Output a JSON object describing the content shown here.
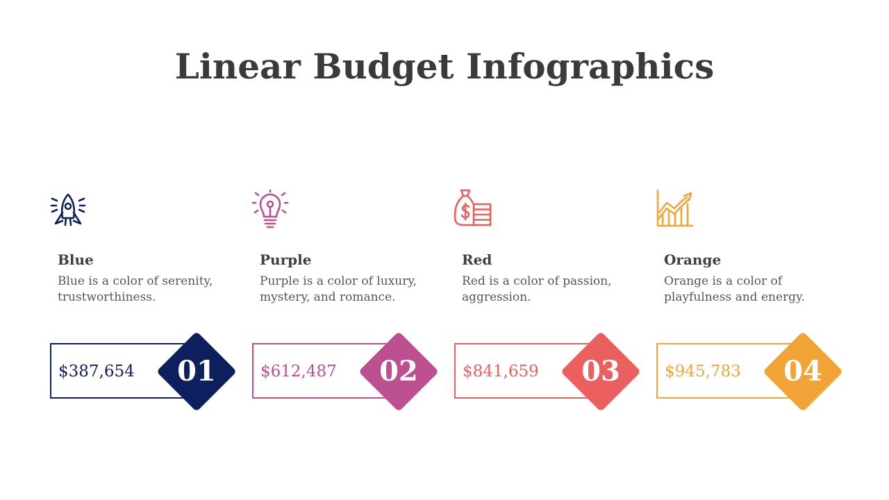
{
  "title": "Linear Budget Infographics",
  "items": [
    {
      "icon": "rocket-icon",
      "name": "Blue",
      "description": "Blue is a color of serenity, trustworthiness.",
      "amount": "$387,654",
      "number": "01",
      "color": "#0d1f5c"
    },
    {
      "icon": "lightbulb-icon",
      "name": "Purple",
      "description": "Purple is a color of luxury, mystery, and romance.",
      "amount": "$612,487",
      "number": "02",
      "color": "#bb4f8f"
    },
    {
      "icon": "money-bag-icon",
      "name": "Red",
      "description": "Red is a color of passion, aggression.",
      "amount": "$841,659",
      "number": "03",
      "color": "#ec5f5f"
    },
    {
      "icon": "growth-chart-icon",
      "name": "Orange",
      "description": "Orange is a color of playfulness and energy.",
      "amount": "$945,783",
      "number": "04",
      "color": "#f2a536"
    }
  ]
}
